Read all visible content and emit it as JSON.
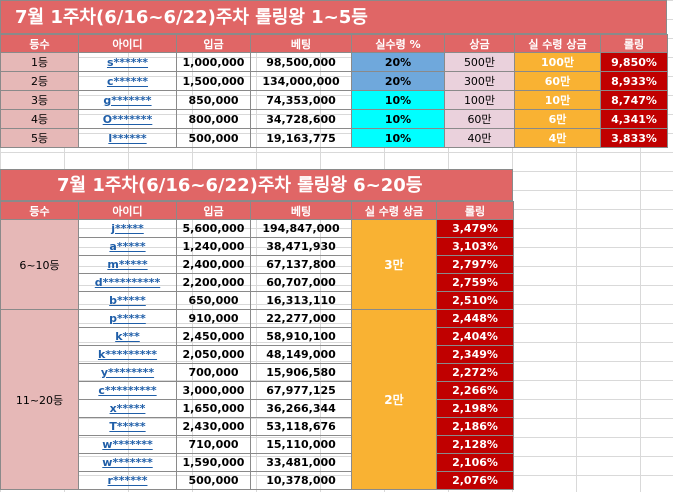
{
  "table1": {
    "title": "7월 1주차(6/16~6/22)주차 롤링왕 1~5등",
    "headers": [
      "등수",
      "아이디",
      "입금",
      "베팅",
      "실수령 %",
      "상금",
      "실 수령 상금",
      "롤링"
    ],
    "rows": [
      {
        "rank": "1등",
        "id": "s******",
        "deposit": "1,000,000",
        "bet": "98,500,000",
        "pct": "20%",
        "prize": "500만",
        "real": "100만",
        "rolling": "9,850%"
      },
      {
        "rank": "2등",
        "id": "c******",
        "deposit": "1,500,000",
        "bet": "134,000,000",
        "pct": "20%",
        "prize": "300만",
        "real": "60만",
        "rolling": "8,933%"
      },
      {
        "rank": "3등",
        "id": "g*******",
        "deposit": "850,000",
        "bet": "74,353,000",
        "pct": "10%",
        "prize": "100만",
        "real": "10만",
        "rolling": "8,747%"
      },
      {
        "rank": "4등",
        "id": "O*******",
        "deposit": "800,000",
        "bet": "34,728,600",
        "pct": "10%",
        "prize": "60만",
        "real": "6만",
        "rolling": "4,341%"
      },
      {
        "rank": "5등",
        "id": "l******",
        "deposit": "500,000",
        "bet": "19,163,775",
        "pct": "10%",
        "prize": "40만",
        "real": "4만",
        "rolling": "3,833%"
      }
    ]
  },
  "table2": {
    "title": "7월 1주차(6/16~6/22)주차 롤링왕 6~20등",
    "headers": [
      "등수",
      "아이디",
      "입금",
      "베팅",
      "실 수령 상금",
      "롤링"
    ],
    "group1": {
      "label": "6~10등",
      "prize": "3만"
    },
    "group2": {
      "label": "11~20등",
      "prize": "2만"
    },
    "rows": [
      {
        "id": "j*****",
        "deposit": "5,600,000",
        "bet": "194,847,000",
        "rolling": "3,479%"
      },
      {
        "id": "a*****",
        "deposit": "1,240,000",
        "bet": "38,471,930",
        "rolling": "3,103%"
      },
      {
        "id": "m*****",
        "deposit": "2,400,000",
        "bet": "67,137,800",
        "rolling": "2,797%"
      },
      {
        "id": "d**********",
        "deposit": "2,200,000",
        "bet": "60,707,000",
        "rolling": "2,759%"
      },
      {
        "id": "b*****",
        "deposit": "650,000",
        "bet": "16,313,110",
        "rolling": "2,510%"
      },
      {
        "id": "p*****",
        "deposit": "910,000",
        "bet": "22,277,000",
        "rolling": "2,448%"
      },
      {
        "id": "k***",
        "deposit": "2,450,000",
        "bet": "58,910,100",
        "rolling": "2,404%"
      },
      {
        "id": "k*********",
        "deposit": "2,050,000",
        "bet": "48,149,000",
        "rolling": "2,349%"
      },
      {
        "id": "y********",
        "deposit": "700,000",
        "bet": "15,906,580",
        "rolling": "2,272%"
      },
      {
        "id": "c*********",
        "deposit": "3,000,000",
        "bet": "67,977,125",
        "rolling": "2,266%"
      },
      {
        "id": "x*****",
        "deposit": "1,650,000",
        "bet": "36,266,344",
        "rolling": "2,198%"
      },
      {
        "id": "T*****",
        "deposit": "2,430,000",
        "bet": "53,118,676",
        "rolling": "2,186%"
      },
      {
        "id": "w*******",
        "deposit": "710,000",
        "bet": "15,110,000",
        "rolling": "2,128%"
      },
      {
        "id": "w*******",
        "deposit": "1,590,000",
        "bet": "33,481,000",
        "rolling": "2,106%"
      },
      {
        "id": "r******",
        "deposit": "500,000",
        "bet": "10,378,000",
        "rolling": "2,076%"
      }
    ]
  }
}
